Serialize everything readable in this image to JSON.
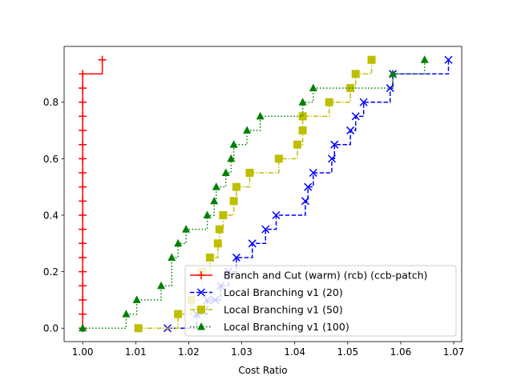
{
  "chart_data": {
    "type": "line",
    "title": "",
    "xlabel": "Cost Ratio",
    "ylabel": "",
    "xlim": [
      0.9965,
      1.0715
    ],
    "ylim": [
      -0.0475,
      0.9975
    ],
    "xticks": [
      1.0,
      1.01,
      1.02,
      1.03,
      1.04,
      1.05,
      1.06,
      1.07
    ],
    "xtick_labels": [
      "1.00",
      "1.01",
      "1.02",
      "1.03",
      "1.04",
      "1.05",
      "1.06",
      "1.07"
    ],
    "yticks": [
      0.0,
      0.2,
      0.4,
      0.6,
      0.8
    ],
    "ytick_labels": [
      "0.0",
      "0.2",
      "0.4",
      "0.6",
      "0.8"
    ],
    "legend_position": "lower-right",
    "series": [
      {
        "name": "Branch and Cut (warm) (rcb) (ccb-patch)",
        "color": "#ff0000",
        "marker": "plus",
        "linestyle": "solid",
        "x": [
          1.0,
          1.0,
          1.0,
          1.0,
          1.0,
          1.0,
          1.0,
          1.0,
          1.0,
          1.0,
          1.0,
          1.0,
          1.0,
          1.0,
          1.0,
          1.0,
          1.0,
          1.0,
          1.0,
          1.0037
        ],
        "y": [
          0.0,
          0.05,
          0.1,
          0.15,
          0.2,
          0.25,
          0.3,
          0.35,
          0.4,
          0.45,
          0.5,
          0.55,
          0.6,
          0.65,
          0.7,
          0.75,
          0.8,
          0.85,
          0.9,
          0.95
        ]
      },
      {
        "name": "Local Branching v1 (20)",
        "color": "#0000ff",
        "marker": "x",
        "linestyle": "dashed",
        "x": [
          1.016,
          1.0215,
          1.0235,
          1.025,
          1.026,
          1.0275,
          1.029,
          1.032,
          1.0345,
          1.0365,
          1.042,
          1.0425,
          1.0435,
          1.047,
          1.0475,
          1.0505,
          1.0515,
          1.053,
          1.058,
          1.0585,
          1.069
        ],
        "y": [
          0.0,
          0.05,
          0.1,
          0.1,
          0.15,
          0.2,
          0.25,
          0.3,
          0.35,
          0.4,
          0.45,
          0.5,
          0.55,
          0.6,
          0.65,
          0.7,
          0.75,
          0.8,
          0.85,
          0.9,
          0.95
        ]
      },
      {
        "name": "Local Branching v1 (50)",
        "color": "#bfbf00",
        "marker": "square",
        "linestyle": "dashdot",
        "x": [
          1.0105,
          1.018,
          1.0205,
          1.0225,
          1.024,
          1.0255,
          1.0258,
          1.0265,
          1.0285,
          1.029,
          1.0315,
          1.037,
          1.0405,
          1.0415,
          1.0415,
          1.0465,
          1.0505,
          1.0515,
          1.0545
        ],
        "y": [
          0.0,
          0.05,
          0.1,
          0.2,
          0.25,
          0.3,
          0.35,
          0.4,
          0.45,
          0.5,
          0.55,
          0.6,
          0.65,
          0.7,
          0.75,
          0.8,
          0.85,
          0.9,
          0.95
        ]
      },
      {
        "name": "Local Branching v1 (100)",
        "color": "#008000",
        "marker": "triangle",
        "linestyle": "dotted",
        "x": [
          1.0,
          1.0082,
          1.0102,
          1.0148,
          1.0168,
          1.018,
          1.0195,
          1.0235,
          1.0248,
          1.0252,
          1.027,
          1.028,
          1.0285,
          1.031,
          1.0335,
          1.0415,
          1.0435,
          1.0585,
          1.0645
        ],
        "y": [
          0.0,
          0.05,
          0.1,
          0.15,
          0.25,
          0.3,
          0.35,
          0.4,
          0.45,
          0.5,
          0.55,
          0.6,
          0.65,
          0.7,
          0.75,
          0.8,
          0.85,
          0.9,
          0.95
        ]
      }
    ]
  }
}
